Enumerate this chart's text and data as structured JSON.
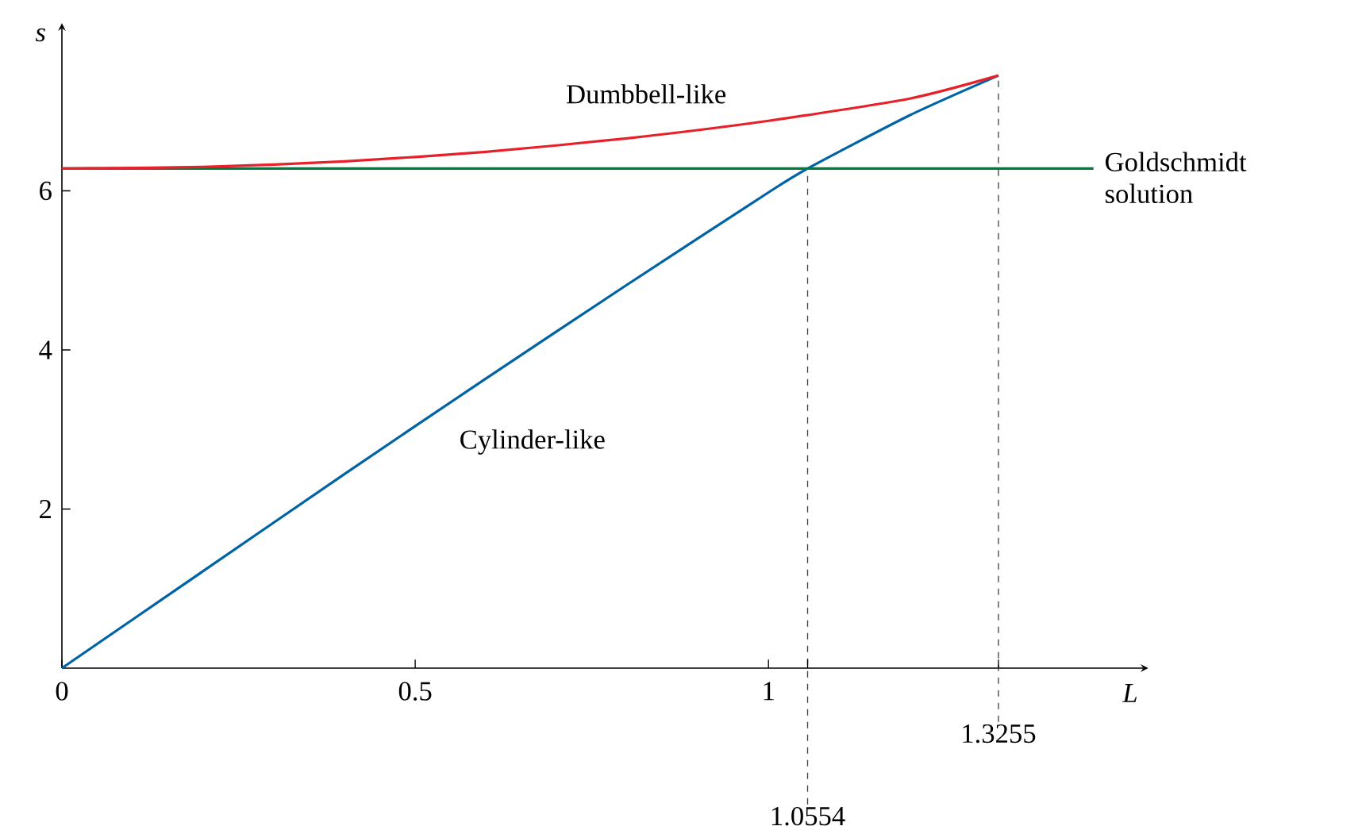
{
  "chart_data": {
    "type": "line",
    "xlabel": "L",
    "ylabel": "s",
    "xlim": [
      0,
      1.53
    ],
    "ylim": [
      0,
      8.04
    ],
    "xticks": [
      0,
      0.5,
      1
    ],
    "yticks": [
      2,
      4,
      6
    ],
    "series": [
      {
        "name": "Cylinder-like",
        "color": "#0063a6",
        "x": [
          0,
          0.2,
          0.4,
          0.6,
          0.8,
          1.0,
          1.0554,
          1.2,
          1.3255
        ],
        "values": [
          0,
          1.22,
          2.44,
          3.64,
          4.82,
          5.98,
          6.28,
          6.95,
          7.45
        ]
      },
      {
        "name": "Goldschmidt solution",
        "color": "#007a3d",
        "x": [
          0,
          1.46
        ],
        "values": [
          6.28,
          6.28
        ]
      },
      {
        "name": "Dumbbell-like",
        "color": "#e8202a",
        "x": [
          0,
          0.2,
          0.4,
          0.6,
          0.8,
          1.0,
          1.2,
          1.3255
        ],
        "values": [
          6.28,
          6.3,
          6.37,
          6.49,
          6.66,
          6.88,
          7.16,
          7.45
        ]
      }
    ],
    "ref_lines": [
      {
        "axis": "x",
        "value": 1.0554,
        "label": "1.0554",
        "color": "#444444",
        "line_style": "dashed"
      },
      {
        "axis": "x",
        "value": 1.3255,
        "label": "1.3255",
        "color": "#444444",
        "line_style": "dashed"
      }
    ]
  }
}
